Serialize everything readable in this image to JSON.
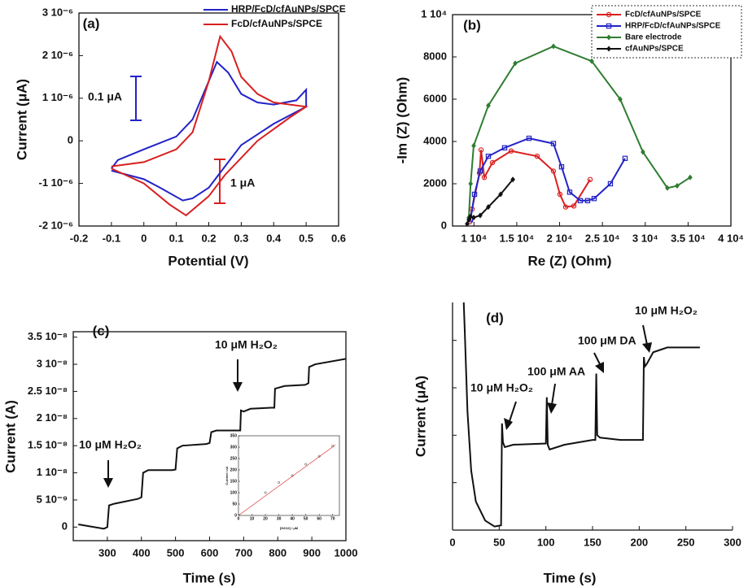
{
  "chart_data": [
    {
      "type": "line",
      "panel_label": "(a)",
      "x_label": "Potential (V)",
      "y_label": "Current (μA)",
      "frame": true,
      "xlim": [
        -0.2,
        0.6
      ],
      "ylim": [
        -2e-06,
        3e-06
      ],
      "xticks": [
        -0.2,
        -0.1,
        0,
        0.1,
        0.2,
        0.3,
        0.4,
        0.5,
        0.6
      ],
      "yticks": [
        {
          "value": -2e-06,
          "label": "-2 10⁻⁶"
        },
        {
          "value": -1e-06,
          "label": "-1 10⁻⁶"
        },
        0,
        {
          "value": 1e-06,
          "label": "1 10⁻⁶"
        },
        {
          "value": 2e-06,
          "label": "2 10⁻⁶"
        },
        {
          "value": 3e-06,
          "label": "3 10⁻⁶"
        }
      ],
      "series": [
        {
          "name": "HRP/FcD/cfAuNPs/SPCE",
          "color": "#2323c8",
          "x": [
            -0.1,
            -0.08,
            0.0,
            0.1,
            0.15,
            0.2,
            0.225,
            0.26,
            0.3,
            0.35,
            0.4,
            0.47,
            0.5,
            0.5,
            0.45,
            0.4,
            0.3,
            0.25,
            0.2,
            0.15,
            0.12,
            0.05,
            0.0,
            -0.1
          ],
          "values": [
            -6.5e-07,
            -4.5e-07,
            -2e-07,
            1e-07,
            5e-07,
            1.4e-06,
            1.85e-06,
            1.6e-06,
            1.1e-06,
            9e-07,
            8.5e-07,
            9.5e-07,
            1.2e-06,
            8e-07,
            6e-07,
            4e-07,
            -1e-07,
            -6e-07,
            -1.1e-06,
            -1.35e-06,
            -1.4e-06,
            -1.1e-06,
            -9e-07,
            -7e-07
          ]
        },
        {
          "name": "FcD/cfAuNPs/SPCE",
          "color": "#d82020",
          "x": [
            -0.1,
            0.0,
            0.1,
            0.15,
            0.2,
            0.235,
            0.27,
            0.3,
            0.35,
            0.4,
            0.5,
            0.45,
            0.35,
            0.3,
            0.25,
            0.2,
            0.13,
            0.08,
            0.0,
            -0.1
          ],
          "values": [
            -6e-07,
            -5e-07,
            -2e-07,
            2e-07,
            1.4e-06,
            2.45e-06,
            2.1e-06,
            1.5e-06,
            1.1e-06,
            9e-07,
            8e-07,
            5.5e-07,
            0,
            -4e-07,
            -8e-07,
            -1.3e-06,
            -1.75e-06,
            -1.5e-06,
            -1e-06,
            -6.5e-07
          ]
        }
      ],
      "annotations": [
        {
          "text": "0.1 μA",
          "color": "#2323c8"
        },
        {
          "text": "1 μA",
          "color": "#d82020"
        }
      ]
    },
    {
      "type": "line",
      "panel_label": "(b)",
      "x_label": "Re (Z) (Ohm)",
      "y_label": "-Im (Z) (Ohm)",
      "frame": true,
      "legend_border": "dotted",
      "xlim": [
        7500,
        40000
      ],
      "ylim": [
        0,
        10000
      ],
      "xticks": [
        {
          "value": 10000,
          "label": "1 10⁴"
        },
        {
          "value": 15000,
          "label": "1.5 10⁴"
        },
        {
          "value": 20000,
          "label": "2 10⁴"
        },
        {
          "value": 25000,
          "label": "2.5 10⁴"
        },
        {
          "value": 30000,
          "label": "3 10⁴"
        },
        {
          "value": 35000,
          "label": "3.5 10⁴"
        },
        {
          "value": 40000,
          "label": "4 10⁴"
        }
      ],
      "yticks": [
        0,
        2000,
        4000,
        6000,
        8000,
        {
          "value": 10000,
          "label": "1 10⁴"
        }
      ],
      "series": [
        {
          "name": "FcD/cfAuNPs/SPCE",
          "color": "#d82020",
          "marker": "circle",
          "x": [
            9500,
            9780,
            10640,
            10830,
            11210,
            12160,
            14340,
            17380,
            19280,
            20040,
            20710,
            21660,
            23560
          ],
          "values": [
            200,
            800,
            2500,
            3600,
            2300,
            3000,
            3550,
            3300,
            2600,
            1500,
            900,
            950,
            2200
          ]
        },
        {
          "name": "HRP/FcD/cfAuNPs/SPCE",
          "color": "#2323c8",
          "marker": "square",
          "x": [
            9590,
            10070,
            10730,
            11680,
            13580,
            16430,
            19280,
            20230,
            21180,
            22420,
            23270,
            24030,
            25930,
            27640
          ],
          "values": [
            300,
            1500,
            2600,
            3300,
            3700,
            4150,
            3900,
            2800,
            1600,
            1200,
            1200,
            1300,
            2000,
            3200
          ]
        },
        {
          "name": "Bare electrode",
          "color": "#2f7d32",
          "marker": "diamond",
          "x": [
            9400,
            9610,
            9970,
            11680,
            14820,
            19280,
            23750,
            27070,
            29730,
            32580,
            33720,
            35240
          ],
          "values": [
            400,
            2000,
            3800,
            5700,
            7700,
            8500,
            7800,
            6000,
            3500,
            1800,
            1900,
            2300
          ]
        },
        {
          "name": "cfAuNPs/SPCE",
          "color": "#111111",
          "marker": "diamond",
          "x": [
            9210,
            9400,
            9590,
            9970,
            10730,
            11680,
            13110,
            14540
          ],
          "values": [
            100,
            300,
            450,
            400,
            500,
            900,
            1500,
            2200
          ]
        }
      ]
    },
    {
      "type": "line",
      "panel_label": "(c)",
      "x_label": "Time (s)",
      "y_label": "Current (A)",
      "frame": true,
      "xlim": [
        200,
        1000
      ],
      "ylim": [
        -2.5e-09,
        3.6e-08
      ],
      "xticks": [
        300,
        400,
        500,
        600,
        700,
        800,
        900,
        1000
      ],
      "yticks": [
        0,
        {
          "value": 5e-09,
          "label": "5 10⁻⁹"
        },
        {
          "value": 1e-08,
          "label": "1 10⁻⁸"
        },
        {
          "value": 1.5e-08,
          "label": "1.5 10⁻⁸"
        },
        {
          "value": 2e-08,
          "label": "2 10⁻⁸"
        },
        {
          "value": 2.5e-08,
          "label": "2.5 10⁻⁸"
        },
        {
          "value": 3e-08,
          "label": "3 10⁻⁸"
        },
        {
          "value": 3.5e-08,
          "label": "3.5 10⁻⁸"
        }
      ],
      "series": [
        {
          "color": "#111111",
          "x": [
            215,
            290,
            300,
            305,
            320,
            390,
            400,
            405,
            420,
            490,
            500,
            505,
            520,
            590,
            600,
            605,
            620,
            680,
            690,
            692,
            700,
            720,
            780,
            790,
            792,
            820,
            880,
            890,
            892,
            910,
            1000
          ],
          "values": [
            5e-10,
            -3e-10,
            0,
            4e-09,
            4.3e-09,
            5.2e-09,
            5.5e-09,
            1e-08,
            1.05e-08,
            1.05e-08,
            1.06e-08,
            1.45e-08,
            1.5e-08,
            1.53e-08,
            1.55e-08,
            1.75e-08,
            1.78e-08,
            1.78e-08,
            1.78e-08,
            2.15e-08,
            2.13e-08,
            2.18e-08,
            2.2e-08,
            2.2e-08,
            2.55e-08,
            2.6e-08,
            2.62e-08,
            2.65e-08,
            2.95e-08,
            3e-08,
            3.1e-08
          ]
        }
      ],
      "annotations": [
        {
          "text": "10 μM H₂O₂",
          "color": "#111111"
        },
        {
          "text": "10 μM H₂O₂",
          "color": "#111111"
        }
      ]
    },
    {
      "type": "line",
      "x_label": "[H2O2] / μM",
      "y_label": "Current / nA",
      "frame": true,
      "xlim": [
        0,
        75
      ],
      "ylim": [
        0,
        350
      ],
      "xticks": [
        0,
        10,
        20,
        30,
        40,
        50,
        60,
        70
      ],
      "yticks": [
        0,
        50,
        100,
        150,
        200,
        250,
        300,
        350
      ],
      "series": [
        {
          "color": "#d82020",
          "x": [
            0,
            72
          ],
          "values": [
            0,
            310
          ]
        },
        {
          "color": "#333333",
          "marker": "circle",
          "line": false,
          "x": [
            20,
            30,
            40,
            50,
            60,
            70
          ],
          "values": [
            100,
            145,
            175,
            225,
            260,
            305
          ]
        }
      ]
    },
    {
      "type": "line",
      "panel_label": "(d)",
      "x_label": "Time (s)",
      "y_label": "Current (μA)",
      "frame": false,
      "ytick_labels": false,
      "xlim": [
        0,
        300
      ],
      "ylim": [
        0,
        96
      ],
      "xticks": [
        0,
        50,
        100,
        150,
        200,
        250,
        300
      ],
      "yticks": [
        20,
        40,
        60,
        80
      ],
      "series": [
        {
          "color": "#111111",
          "x": [
            12,
            13,
            16,
            20,
            25,
            35,
            45,
            52,
            53,
            54,
            56,
            65,
            100,
            101,
            102,
            104,
            120,
            150,
            153,
            154,
            155,
            158,
            180,
            204,
            205,
            206,
            208,
            215,
            230,
            265
          ],
          "values": [
            96,
            85,
            50,
            25,
            12,
            4,
            1.5,
            2,
            45,
            37,
            35,
            36,
            36.5,
            56,
            36,
            34,
            36,
            38,
            38,
            66,
            40,
            39,
            38,
            38,
            73,
            69,
            70,
            75,
            77,
            77
          ]
        }
      ],
      "annotations": [
        {
          "text": "10 μM H₂O₂",
          "color": "#3a7a2a"
        },
        {
          "text": "100 μM AA",
          "color": "#3a7a2a"
        },
        {
          "text": "100 μM DA",
          "color": "#3a7a2a"
        },
        {
          "text": "10 μM H₂O₂",
          "color": "#3a7a2a"
        }
      ]
    }
  ]
}
